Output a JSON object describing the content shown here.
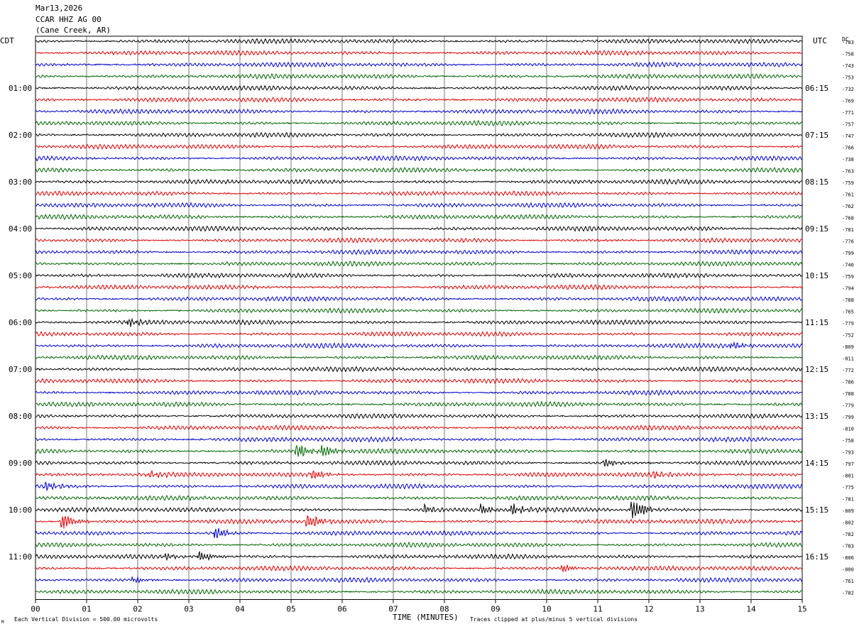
{
  "header": {
    "date": "Mar13,2026",
    "station": "CCAR HHZ AG 00",
    "location": "(Cane Creek, AR)"
  },
  "left_axis_title": "CDT",
  "right_axis_title": "UTC",
  "dc_title": "DC",
  "footer": {
    "scale_note": "Each Vertical Division =  500.00 microvolts",
    "clip_note": "Traces clipped at plus/minus 5 vertical divisions",
    "corner_mark": "M"
  },
  "chart_data": {
    "type": "line",
    "title": "",
    "xlabel": "TIME (MINUTES)",
    "x_ticks": [
      "00",
      "01",
      "02",
      "03",
      "04",
      "05",
      "06",
      "07",
      "08",
      "09",
      "10",
      "11",
      "12",
      "13",
      "14",
      "15"
    ],
    "xlim": [
      0,
      15
    ],
    "trace_colors": [
      "#000000",
      "#dd0000",
      "#0000cc",
      "#006600"
    ],
    "left_hour_labels": [
      "01:00",
      "02:00",
      "03:00",
      "04:00",
      "05:00",
      "06:00",
      "07:00",
      "08:00",
      "09:00",
      "10:00",
      "11:00"
    ],
    "right_hour_labels": [
      "06:15",
      "07:15",
      "08:15",
      "09:15",
      "10:15",
      "11:15",
      "12:15",
      "13:15",
      "14:15",
      "15:15",
      "16:15"
    ],
    "dc_offsets": [
      -783,
      -758,
      -743,
      -753,
      -732,
      -769,
      -771,
      -757,
      -747,
      -766,
      -738,
      -763,
      -759,
      -761,
      -762,
      -768,
      -781,
      -776,
      -799,
      -740,
      -759,
      -794,
      -788,
      -765,
      -779,
      -752,
      -809,
      -811,
      -772,
      -786,
      -788,
      -779,
      -799,
      -810,
      -758,
      -793,
      -797,
      -801,
      -775,
      -781,
      -809,
      -802,
      -782,
      -783,
      -806,
      -800,
      -761,
      -782
    ],
    "events": [
      {
        "line": 24,
        "minute": 1.8,
        "amplitude": 1.3
      },
      {
        "line": 35,
        "minute": 5.1,
        "amplitude": 2.6
      },
      {
        "line": 35,
        "minute": 5.6,
        "amplitude": 1.6
      },
      {
        "line": 36,
        "minute": 11.1,
        "amplitude": 1.4
      },
      {
        "line": 37,
        "minute": 5.4,
        "amplitude": 1.4
      },
      {
        "line": 37,
        "minute": 2.2,
        "amplitude": 1.0
      },
      {
        "line": 37,
        "minute": 12.1,
        "amplitude": 1.0
      },
      {
        "line": 38,
        "minute": 0.2,
        "amplitude": 1.2
      },
      {
        "line": 40,
        "minute": 8.7,
        "amplitude": 1.6
      },
      {
        "line": 40,
        "minute": 9.3,
        "amplitude": 1.7
      },
      {
        "line": 40,
        "minute": 7.6,
        "amplitude": 1.2
      },
      {
        "line": 40,
        "minute": 11.65,
        "amplitude": 4.0
      },
      {
        "line": 41,
        "minute": 0.5,
        "amplitude": 2.6
      },
      {
        "line": 41,
        "minute": 5.3,
        "amplitude": 2.4
      },
      {
        "line": 42,
        "minute": 3.5,
        "amplitude": 1.6
      },
      {
        "line": 44,
        "minute": 3.2,
        "amplitude": 1.8
      },
      {
        "line": 44,
        "minute": 2.5,
        "amplitude": 1.0
      },
      {
        "line": 45,
        "minute": 10.3,
        "amplitude": 1.2
      },
      {
        "line": 46,
        "minute": 1.9,
        "amplitude": 1.0
      },
      {
        "line": 26,
        "minute": 13.6,
        "amplitude": 1.1
      }
    ]
  }
}
